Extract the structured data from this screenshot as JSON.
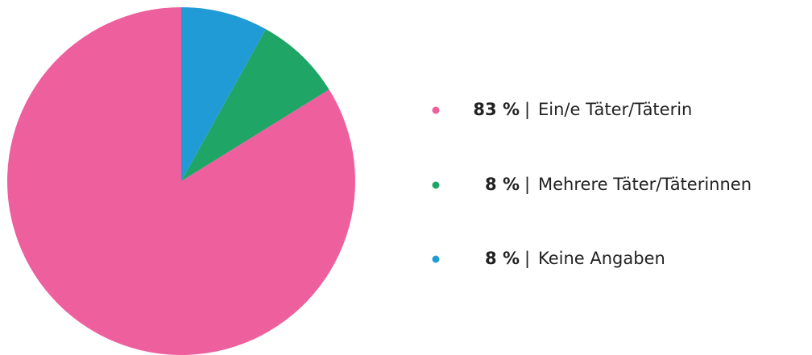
{
  "chart_data": {
    "type": "pie",
    "categories": [
      "Ein/e Täter/Täterin",
      "Mehrere Täter/Täterinnen",
      "Keine Angaben"
    ],
    "values": [
      83,
      8,
      8
    ],
    "value_labels": [
      "83 %",
      "8 %",
      "8 %"
    ],
    "colors": [
      "#ee5f9e",
      "#1fa566",
      "#219bd6"
    ],
    "legend_separator": "|",
    "legend": "right"
  }
}
